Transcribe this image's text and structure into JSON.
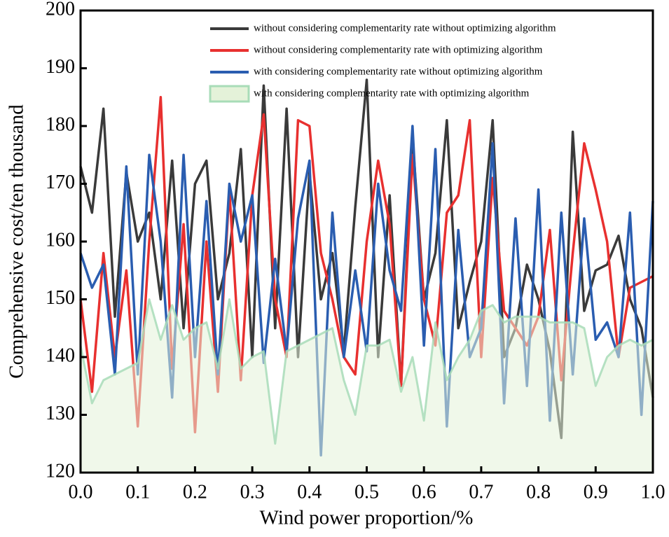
{
  "chart_data": {
    "type": "line",
    "xlabel": "Wind power proportion/%",
    "ylabel": "Comprehensive cost/ten thousand",
    "x": [
      0,
      0.02,
      0.04,
      0.06,
      0.08,
      0.1,
      0.12,
      0.14,
      0.16,
      0.18,
      0.2,
      0.22,
      0.24,
      0.26,
      0.28,
      0.3,
      0.32,
      0.34,
      0.36,
      0.38,
      0.4,
      0.42,
      0.44,
      0.46,
      0.48,
      0.5,
      0.52,
      0.54,
      0.56,
      0.58,
      0.6,
      0.62,
      0.64,
      0.66,
      0.68,
      0.7,
      0.72,
      0.74,
      0.76,
      0.78,
      0.8,
      0.82,
      0.84,
      0.86,
      0.88,
      0.9,
      0.92,
      0.94,
      0.96,
      0.98,
      1.0
    ],
    "series": [
      {
        "name": "without considering complementarity rate without optimizing algorithm",
        "color": "#3a3a3a",
        "values": [
          173,
          165,
          183,
          147,
          172,
          160,
          165,
          150,
          174,
          145,
          170,
          174,
          150,
          158,
          176,
          140,
          187,
          145,
          183,
          140,
          172,
          150,
          158,
          141,
          166,
          188,
          140,
          168,
          135,
          178,
          150,
          158,
          181,
          145,
          153,
          160,
          181,
          140,
          145,
          156,
          150,
          141,
          126,
          179,
          148,
          155,
          156,
          161,
          150,
          145,
          133
        ]
      },
      {
        "name": "without considering complementarity rate with optimizing algorithm",
        "color": "#e8302f",
        "values": [
          150,
          134,
          158,
          140,
          155,
          128,
          160,
          185,
          138,
          163,
          127,
          160,
          134,
          169,
          136,
          168,
          182,
          150,
          140,
          181,
          180,
          158,
          150,
          140,
          137,
          160,
          174,
          163,
          135,
          175,
          150,
          142,
          165,
          168,
          181,
          140,
          171,
          148,
          145,
          142,
          147,
          162,
          136,
          158,
          177,
          169,
          160,
          140,
          152,
          153,
          154
        ]
      },
      {
        "name": "with considering complementarity rate without optimizing algorithm",
        "color": "#2a5db0",
        "values": [
          158,
          152,
          156,
          137,
          173,
          137,
          175,
          160,
          133,
          175,
          140,
          167,
          137,
          170,
          160,
          168,
          139,
          157,
          141,
          164,
          174,
          123,
          165,
          140,
          155,
          141,
          170,
          155,
          148,
          180,
          142,
          176,
          128,
          162,
          140,
          145,
          177,
          132,
          164,
          135,
          169,
          129,
          165,
          137,
          164,
          143,
          146,
          140,
          165,
          130,
          167
        ]
      },
      {
        "name": "with considering complementarity rate with optimizing algorithm",
        "color": "#a8dcb8",
        "fill": "#e4f2d9",
        "values": [
          142,
          132,
          136,
          137,
          138,
          139,
          150,
          143,
          149,
          143,
          145,
          146,
          138,
          150,
          138,
          140,
          141,
          125,
          141,
          142,
          143,
          144,
          145,
          136,
          130,
          142,
          142,
          143,
          134,
          140,
          129,
          146,
          136,
          140,
          143,
          148,
          149,
          146,
          147,
          147,
          147,
          146,
          146,
          146,
          145,
          135,
          140,
          142,
          143,
          142,
          143
        ]
      }
    ],
    "xlim": [
      0,
      1
    ],
    "xticks": [
      {
        "value": 0,
        "label": "0.0"
      },
      0.1,
      0.2,
      0.3,
      0.4,
      0.5,
      0.6,
      0.7,
      0.8,
      0.9,
      {
        "value": 1,
        "label": "1.0"
      }
    ],
    "ylim": [
      120,
      200
    ],
    "yticks": [
      120,
      130,
      140,
      150,
      160,
      170,
      180,
      190,
      200
    ],
    "legend": "upper right"
  }
}
